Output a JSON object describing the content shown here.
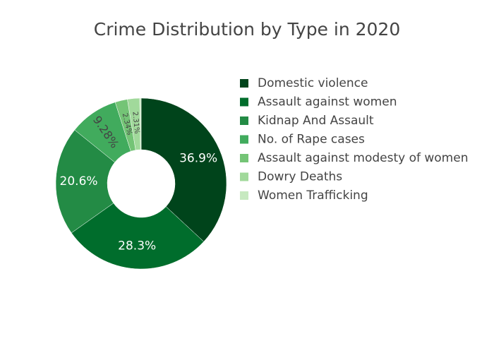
{
  "chart_data": {
    "type": "pie",
    "hole": true,
    "title": "Crime Distribution by Type in 2020",
    "categories": [
      "Domestic violence",
      "Assault against women",
      "Kidnap And Assault",
      "No. of Rape cases",
      "Assault against modesty of women",
      "Dowry Deaths",
      "Women Trafficking"
    ],
    "values": [
      36.9,
      28.3,
      20.6,
      9.28,
      2.34,
      2.31,
      0.27
    ],
    "labels": [
      "36.9%",
      "28.3%",
      "20.6%",
      "9.28%",
      "2.34%",
      "2.31%",
      ""
    ],
    "colors": [
      "#00441b",
      "#006d2c",
      "#238b45",
      "#41ab5d",
      "#74c476",
      "#a1d99b",
      "#c7e9c0"
    ],
    "label_colors": [
      "#ffffff",
      "#ffffff",
      "#ffffff",
      "#444444",
      "#444444",
      "#444444",
      "#444444"
    ],
    "legend_position": "right",
    "direction": "clockwise",
    "start_angle": "top"
  }
}
